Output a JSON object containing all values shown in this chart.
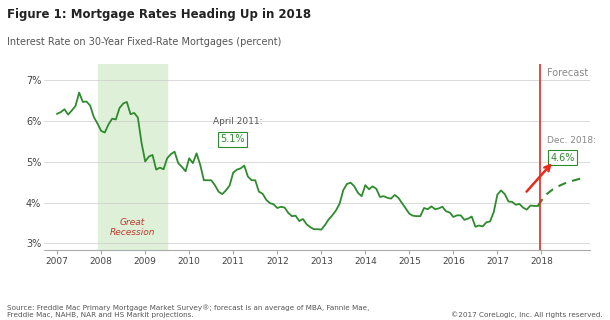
{
  "title": "Figure 1: Mortgage Rates Heading Up in 2018",
  "subtitle": "Interest Rate on 30-Year Fixed-Rate Mortgages (percent)",
  "source_text": "Source: Freddie Mac Primary Mortgage Market Survey®; forecast is an average of MBA, Fannie Mae,\nFreddie Mac, NAHB, NAR and HS Markit projections.",
  "copyright_text": "©2017 CoreLogic, Inc. All rights reserved.",
  "ylabel_ticks": [
    "3%",
    "4%",
    "5%",
    "6%",
    "7%"
  ],
  "ylim": [
    2.85,
    7.4
  ],
  "xlim": [
    2006.7,
    2019.1
  ],
  "recession_start": 2007.917,
  "recession_end": 2009.5,
  "recession_label": "Great\nRecession",
  "recession_color": "#dff0d8",
  "recession_label_color": "#c0392b",
  "line_color": "#2e8b2e",
  "vline_color": "#e8291c",
  "vline_x": 2017.958,
  "forecast_label": "Forecast",
  "april2011_label": "April 2011:",
  "april2011_val": "5.1%",
  "dec2018_label": "Dec. 2018:",
  "dec2018_val": "4.6%",
  "background_color": "#ffffff",
  "historical_x": [
    2007.0,
    2007.083,
    2007.167,
    2007.25,
    2007.333,
    2007.417,
    2007.5,
    2007.583,
    2007.667,
    2007.75,
    2007.833,
    2007.917,
    2008.0,
    2008.083,
    2008.167,
    2008.25,
    2008.333,
    2008.417,
    2008.5,
    2008.583,
    2008.667,
    2008.75,
    2008.833,
    2008.917,
    2009.0,
    2009.083,
    2009.167,
    2009.25,
    2009.333,
    2009.417,
    2009.5,
    2009.583,
    2009.667,
    2009.75,
    2009.833,
    2009.917,
    2010.0,
    2010.083,
    2010.167,
    2010.25,
    2010.333,
    2010.417,
    2010.5,
    2010.583,
    2010.667,
    2010.75,
    2010.833,
    2010.917,
    2011.0,
    2011.083,
    2011.167,
    2011.25,
    2011.333,
    2011.417,
    2011.5,
    2011.583,
    2011.667,
    2011.75,
    2011.833,
    2011.917,
    2012.0,
    2012.083,
    2012.167,
    2012.25,
    2012.333,
    2012.417,
    2012.5,
    2012.583,
    2012.667,
    2012.75,
    2012.833,
    2012.917,
    2013.0,
    2013.083,
    2013.167,
    2013.25,
    2013.333,
    2013.417,
    2013.5,
    2013.583,
    2013.667,
    2013.75,
    2013.833,
    2013.917,
    2014.0,
    2014.083,
    2014.167,
    2014.25,
    2014.333,
    2014.417,
    2014.5,
    2014.583,
    2014.667,
    2014.75,
    2014.833,
    2014.917,
    2015.0,
    2015.083,
    2015.167,
    2015.25,
    2015.333,
    2015.417,
    2015.5,
    2015.583,
    2015.667,
    2015.75,
    2015.833,
    2015.917,
    2016.0,
    2016.083,
    2016.167,
    2016.25,
    2016.333,
    2016.417,
    2016.5,
    2016.583,
    2016.667,
    2016.75,
    2016.833,
    2016.917,
    2017.0,
    2017.083,
    2017.167,
    2017.25,
    2017.333,
    2017.417,
    2017.5,
    2017.583,
    2017.667,
    2017.75,
    2017.833,
    2017.917
  ],
  "historical_y": [
    6.18,
    6.22,
    6.29,
    6.16,
    6.26,
    6.37,
    6.7,
    6.47,
    6.48,
    6.38,
    6.1,
    5.94,
    5.76,
    5.72,
    5.92,
    6.06,
    6.04,
    6.32,
    6.43,
    6.47,
    6.17,
    6.2,
    6.09,
    5.47,
    5.01,
    5.13,
    5.17,
    4.81,
    4.86,
    4.82,
    5.09,
    5.19,
    5.25,
    4.97,
    4.88,
    4.77,
    5.09,
    4.97,
    5.21,
    4.93,
    4.55,
    4.55,
    4.55,
    4.43,
    4.27,
    4.21,
    4.3,
    4.42,
    4.74,
    4.81,
    4.84,
    4.91,
    4.64,
    4.55,
    4.55,
    4.27,
    4.22,
    4.07,
    3.99,
    3.96,
    3.87,
    3.9,
    3.88,
    3.75,
    3.67,
    3.68,
    3.55,
    3.6,
    3.47,
    3.4,
    3.35,
    3.35,
    3.34,
    3.45,
    3.59,
    3.69,
    3.81,
    3.98,
    4.31,
    4.46,
    4.49,
    4.4,
    4.24,
    4.16,
    4.43,
    4.33,
    4.4,
    4.34,
    4.14,
    4.16,
    4.12,
    4.1,
    4.19,
    4.12,
    3.99,
    3.86,
    3.73,
    3.68,
    3.67,
    3.67,
    3.87,
    3.84,
    3.91,
    3.84,
    3.86,
    3.9,
    3.79,
    3.76,
    3.65,
    3.69,
    3.69,
    3.58,
    3.61,
    3.66,
    3.41,
    3.44,
    3.42,
    3.52,
    3.54,
    3.77,
    4.2,
    4.3,
    4.21,
    4.03,
    4.02,
    3.95,
    3.97,
    3.88,
    3.83,
    3.93,
    3.92,
    3.92
  ],
  "forecast_x": [
    2017.917,
    2018.083,
    2018.25,
    2018.417,
    2018.583,
    2018.75,
    2018.917
  ],
  "forecast_y": [
    3.92,
    4.18,
    4.32,
    4.42,
    4.5,
    4.55,
    4.6
  ]
}
